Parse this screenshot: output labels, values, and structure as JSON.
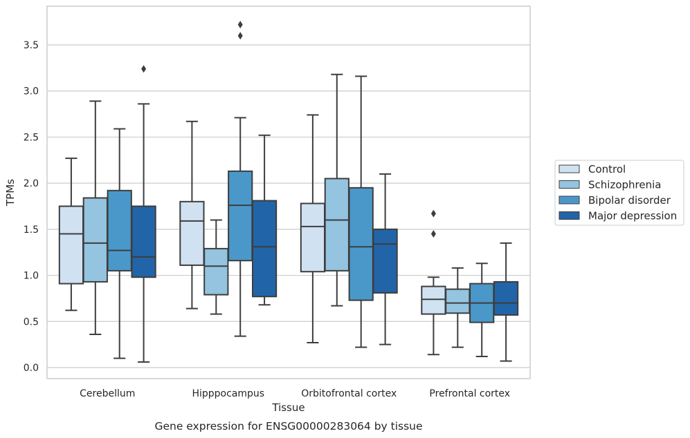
{
  "chart_data": {
    "type": "boxplot",
    "caption": "Gene expression for ENSG00000283064 by tissue",
    "xlabel": "Tissue",
    "ylabel": "TPMs",
    "ylim": [
      -0.12,
      3.92
    ],
    "yticks": [
      0.0,
      0.5,
      1.0,
      1.5,
      2.0,
      2.5,
      3.0,
      3.5
    ],
    "ytick_labels": [
      "0.0",
      "0.5",
      "1.0",
      "1.5",
      "2.0",
      "2.5",
      "3.0",
      "3.5"
    ],
    "grid": "horizontal",
    "legend_placement": "right",
    "categories": [
      "Cerebellum",
      "Hipppocampus",
      "Orbitofrontal cortex",
      "Prefrontal cortex"
    ],
    "series": [
      {
        "name": "Control",
        "color": "#d0e1f2",
        "boxes": [
          {
            "whislo": 0.62,
            "q1": 0.91,
            "med": 1.45,
            "q3": 1.75,
            "whishi": 2.27,
            "fliers": []
          },
          {
            "whislo": 0.64,
            "q1": 1.11,
            "med": 1.59,
            "q3": 1.8,
            "whishi": 2.67,
            "fliers": []
          },
          {
            "whislo": 0.27,
            "q1": 1.04,
            "med": 1.53,
            "q3": 1.78,
            "whishi": 2.74,
            "fliers": []
          },
          {
            "whislo": 0.14,
            "q1": 0.58,
            "med": 0.74,
            "q3": 0.88,
            "whishi": 0.98,
            "fliers": [
              1.45,
              1.67
            ]
          }
        ]
      },
      {
        "name": "Schizophrenia",
        "color": "#94c4df",
        "boxes": [
          {
            "whislo": 0.36,
            "q1": 0.93,
            "med": 1.35,
            "q3": 1.84,
            "whishi": 2.89,
            "fliers": []
          },
          {
            "whislo": 0.58,
            "q1": 0.79,
            "med": 1.1,
            "q3": 1.29,
            "whishi": 1.6,
            "fliers": []
          },
          {
            "whislo": 0.67,
            "q1": 1.05,
            "med": 1.6,
            "q3": 2.05,
            "whishi": 3.18,
            "fliers": []
          },
          {
            "whislo": 0.22,
            "q1": 0.59,
            "med": 0.7,
            "q3": 0.85,
            "whishi": 1.08,
            "fliers": []
          }
        ]
      },
      {
        "name": "Bipolar disorder",
        "color": "#4a98c9",
        "boxes": [
          {
            "whislo": 0.1,
            "q1": 1.05,
            "med": 1.27,
            "q3": 1.92,
            "whishi": 2.59,
            "fliers": []
          },
          {
            "whislo": 0.34,
            "q1": 1.16,
            "med": 1.76,
            "q3": 2.13,
            "whishi": 2.71,
            "fliers": [
              3.6,
              3.72
            ]
          },
          {
            "whislo": 0.22,
            "q1": 0.73,
            "med": 1.31,
            "q3": 1.95,
            "whishi": 3.16,
            "fliers": []
          },
          {
            "whislo": 0.12,
            "q1": 0.49,
            "med": 0.7,
            "q3": 0.91,
            "whishi": 1.13,
            "fliers": []
          }
        ]
      },
      {
        "name": "Major depression",
        "color": "#2264a8",
        "boxes": [
          {
            "whislo": 0.06,
            "q1": 0.98,
            "med": 1.2,
            "q3": 1.75,
            "whishi": 2.86,
            "fliers": [
              3.24
            ]
          },
          {
            "whislo": 0.68,
            "q1": 0.77,
            "med": 1.31,
            "q3": 1.81,
            "whishi": 2.52,
            "fliers": []
          },
          {
            "whislo": 0.25,
            "q1": 0.81,
            "med": 1.34,
            "q3": 1.5,
            "whishi": 2.1,
            "fliers": []
          },
          {
            "whislo": 0.07,
            "q1": 0.57,
            "med": 0.7,
            "q3": 0.93,
            "whishi": 1.35,
            "fliers": []
          }
        ]
      }
    ]
  }
}
